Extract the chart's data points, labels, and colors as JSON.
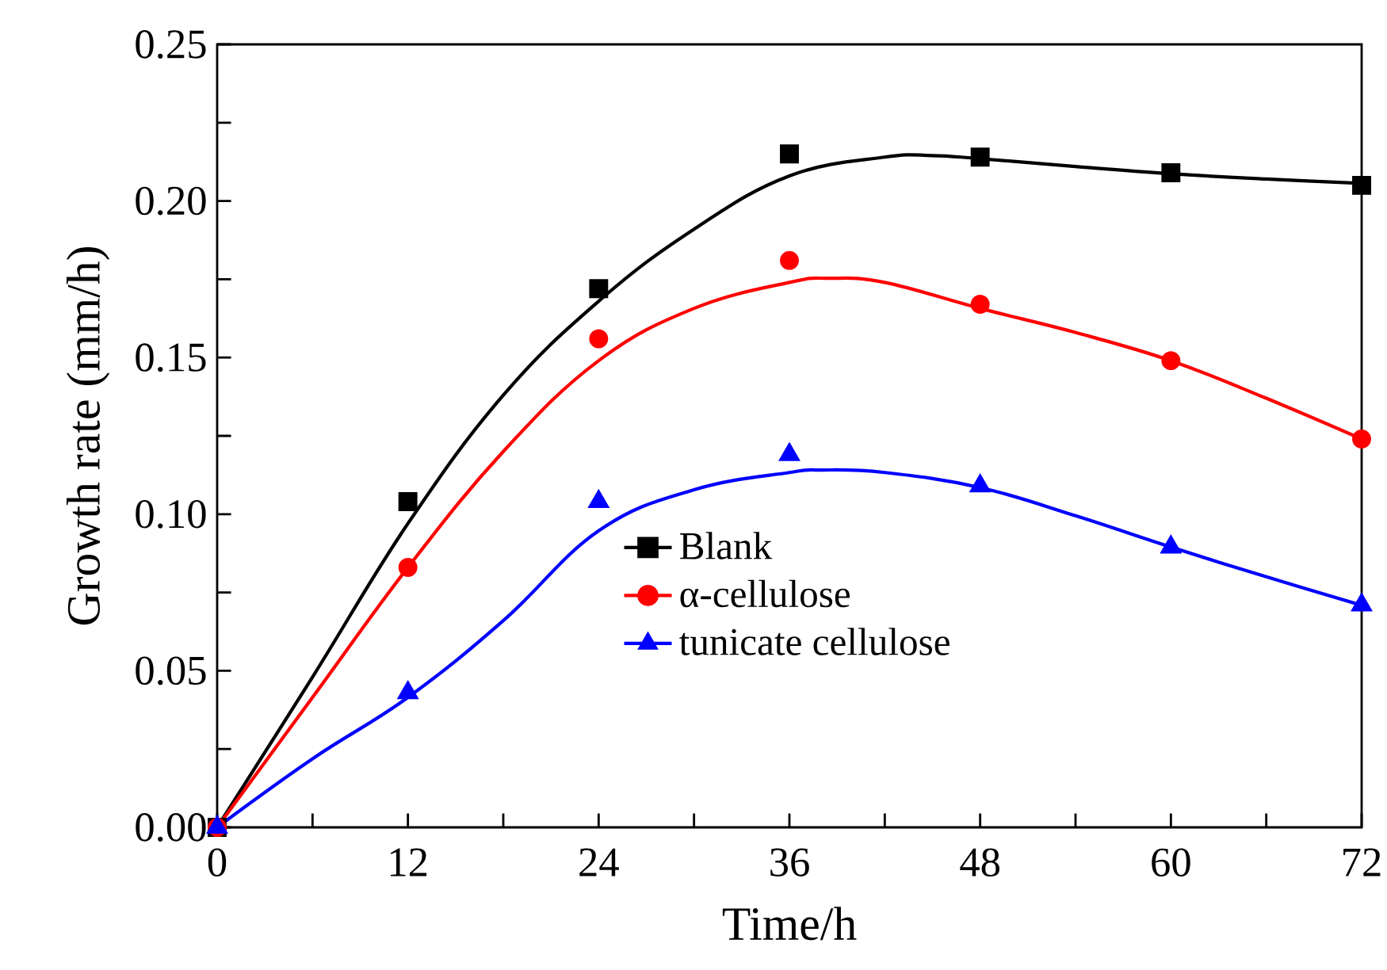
{
  "chart_data": {
    "type": "line",
    "xlabel": "Time/h",
    "ylabel": "Growth rate (mm/h)",
    "xlim": [
      0,
      72
    ],
    "ylim": [
      0,
      0.25
    ],
    "xticks": [
      0,
      {
        "value": 6,
        "label": null
      },
      12,
      {
        "value": 18,
        "label": null
      },
      24,
      {
        "value": 30,
        "label": null
      },
      36,
      {
        "value": 42,
        "label": null
      },
      48,
      {
        "value": 54,
        "label": null
      },
      60,
      {
        "value": 66,
        "label": null
      },
      72
    ],
    "yticks": [
      {
        "value": 0,
        "label": "0.00"
      },
      {
        "value": 0.025,
        "label": null
      },
      0.05,
      {
        "value": 0.075,
        "label": null
      },
      {
        "value": 0.1,
        "label": "0.10"
      },
      {
        "value": 0.125,
        "label": null
      },
      0.15,
      {
        "value": 0.175,
        "label": null
      },
      {
        "value": 0.2,
        "label": "0.20"
      },
      {
        "value": 0.225,
        "label": null
      },
      0.25
    ],
    "legend": "bottom",
    "grid": false,
    "series": [
      {
        "type": "scatter",
        "name": "Blank",
        "color": "#000000",
        "marker": "square",
        "x": [
          0,
          12,
          24,
          36,
          48,
          60,
          72
        ],
        "values": [
          0,
          0.104,
          0.172,
          0.215,
          0.214,
          0.209,
          0.205
        ]
      },
      {
        "type": "scatter",
        "name": "α-cellulose",
        "color": "#ff0000",
        "marker": "circle",
        "x": [
          0,
          12,
          24,
          36,
          48,
          60,
          72
        ],
        "values": [
          0,
          0.083,
          0.156,
          0.181,
          0.167,
          0.149,
          0.124
        ]
      },
      {
        "type": "scatter",
        "name": "tunicate cellulose",
        "color": "#0000ff",
        "marker": "triangle",
        "x": [
          0,
          12,
          24,
          36,
          48,
          60,
          72
        ],
        "values": [
          0,
          0.043,
          0.104,
          0.119,
          0.109,
          0.0895,
          0.071
        ]
      },
      {
        "color": "#000000",
        "marker": "none",
        "x": [
          0,
          6,
          12,
          18,
          24,
          30,
          36,
          42,
          45,
          48,
          54,
          60,
          66,
          72
        ],
        "values": [
          0,
          0.048,
          0.097,
          0.138,
          0.168,
          0.191,
          0.208,
          0.214,
          0.2145,
          0.2135,
          0.211,
          0.2087,
          0.207,
          0.2056
        ]
      },
      {
        "color": "#ff0000",
        "marker": "none",
        "x": [
          0,
          6,
          12,
          18,
          24,
          30,
          36,
          38.5,
          42,
          48,
          54,
          60,
          66,
          72
        ],
        "values": [
          0,
          0.0415,
          0.083,
          0.12,
          0.149,
          0.1657,
          0.174,
          0.1753,
          0.174,
          0.1657,
          0.158,
          0.149,
          0.137,
          0.124
        ]
      },
      {
        "color": "#0000ff",
        "marker": "none",
        "x": [
          0,
          6,
          12,
          18,
          24,
          30,
          36,
          38,
          42,
          48,
          54,
          60,
          66,
          72
        ],
        "values": [
          0,
          0.0219,
          0.0415,
          0.066,
          0.0947,
          0.1078,
          0.1133,
          0.1141,
          0.1133,
          0.1085,
          0.0995,
          0.0895,
          0.08,
          0.0709
        ]
      }
    ]
  }
}
